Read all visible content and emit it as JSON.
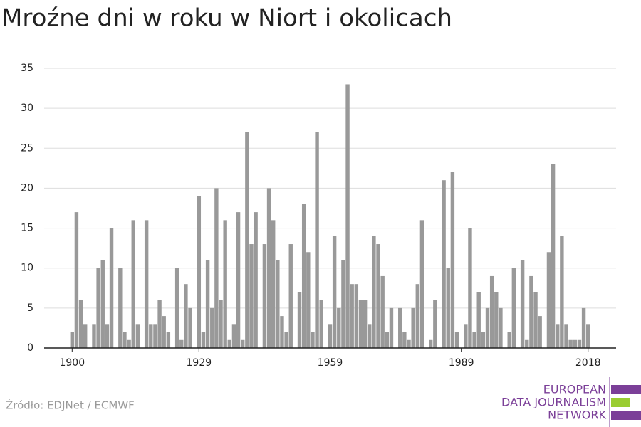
{
  "chart_data": {
    "type": "bar",
    "title": "Mroźne dni w roku w Niort i okolicach",
    "source": "Źródło: EDJNet / ECMWF",
    "logo": [
      "EUROPEAN",
      "DATA JOURNALISM",
      "NETWORK"
    ],
    "color": "#999999",
    "x": [
      1900,
      1901,
      1902,
      1903,
      1904,
      1905,
      1906,
      1907,
      1908,
      1909,
      1910,
      1911,
      1912,
      1913,
      1914,
      1915,
      1916,
      1917,
      1918,
      1919,
      1920,
      1921,
      1922,
      1923,
      1924,
      1925,
      1926,
      1927,
      1928,
      1929,
      1930,
      1931,
      1932,
      1933,
      1934,
      1935,
      1936,
      1937,
      1938,
      1939,
      1940,
      1941,
      1942,
      1943,
      1944,
      1945,
      1946,
      1947,
      1948,
      1949,
      1950,
      1951,
      1952,
      1953,
      1954,
      1955,
      1956,
      1957,
      1958,
      1959,
      1960,
      1961,
      1962,
      1963,
      1964,
      1965,
      1966,
      1967,
      1968,
      1969,
      1970,
      1971,
      1972,
      1973,
      1974,
      1975,
      1976,
      1977,
      1978,
      1979,
      1980,
      1981,
      1982,
      1983,
      1984,
      1985,
      1986,
      1987,
      1988,
      1989,
      1990,
      1991,
      1992,
      1993,
      1994,
      1995,
      1996,
      1997,
      1998,
      1999,
      2000,
      2001,
      2002,
      2003,
      2004,
      2005,
      2006,
      2007,
      2008,
      2009,
      2010,
      2011,
      2012,
      2013,
      2014,
      2015,
      2016,
      2017,
      2018
    ],
    "values": [
      2,
      17,
      6,
      3,
      0,
      3,
      10,
      11,
      3,
      15,
      0,
      10,
      2,
      1,
      16,
      3,
      0,
      16,
      3,
      3,
      6,
      4,
      2,
      0,
      10,
      1,
      8,
      5,
      0,
      19,
      2,
      11,
      5,
      20,
      6,
      16,
      1,
      3,
      17,
      1,
      27,
      13,
      17,
      0,
      13,
      20,
      16,
      11,
      4,
      2,
      13,
      0,
      7,
      18,
      12,
      2,
      27,
      6,
      0,
      3,
      14,
      5,
      11,
      33,
      8,
      8,
      6,
      6,
      3,
      14,
      13,
      9,
      2,
      5,
      0,
      5,
      2,
      1,
      5,
      8,
      16,
      0,
      1,
      6,
      0,
      21,
      10,
      22,
      2,
      0,
      3,
      15,
      2,
      7,
      2,
      5,
      9,
      7,
      5,
      0,
      2,
      10,
      0,
      11,
      1,
      9,
      7,
      4,
      0,
      12,
      23,
      3,
      14,
      3,
      1,
      1,
      1,
      5,
      3
    ],
    "xlim": [
      1893.6,
      2024.4
    ],
    "xticks": [
      1900,
      1929,
      1959,
      1989,
      2018
    ],
    "ylim": [
      0,
      35
    ],
    "yticks": [
      0,
      5,
      10,
      15,
      20,
      25,
      30,
      35
    ],
    "grid": true
  }
}
